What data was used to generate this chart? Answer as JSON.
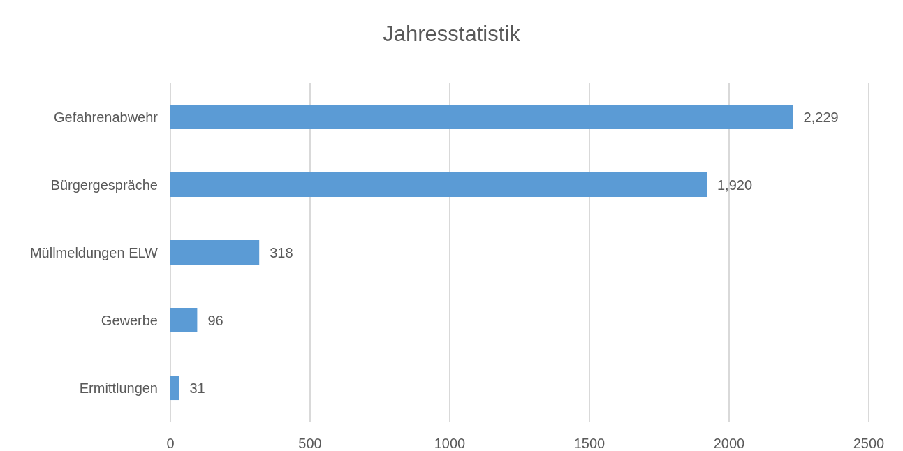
{
  "chart_data": {
    "type": "bar",
    "orientation": "horizontal",
    "title": "Jahresstatistik",
    "categories": [
      "Gefahrenabwehr",
      "Bürgergespräche",
      "Müllmeldungen ELW",
      "Gewerbe",
      "Ermittlungen"
    ],
    "values": [
      2229,
      1920,
      318,
      96,
      31
    ],
    "value_labels": [
      "2,229",
      "1,920",
      "318",
      "96",
      "31"
    ],
    "color": "#5b9bd5",
    "xlim": [
      0,
      2500
    ],
    "xticks": [
      0,
      500,
      1000,
      1500,
      2000,
      2500
    ],
    "grid": "x"
  }
}
